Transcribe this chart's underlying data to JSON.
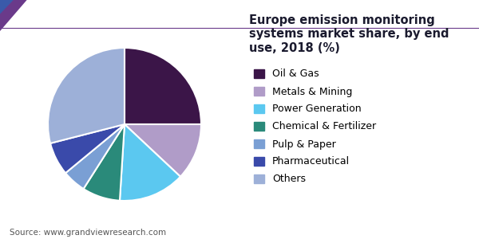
{
  "title": "Europe emission monitoring systems market share, by end use, 2018 (%)",
  "source": "Source: www.grandviewresearch.com",
  "labels": [
    "Oil & Gas",
    "Metals & Mining",
    "Power Generation",
    "Chemical & Fertilizer",
    "Pulp & Paper",
    "Pharmaceutical",
    "Others"
  ],
  "values": [
    25,
    12,
    14,
    8,
    5,
    7,
    29
  ],
  "colors": [
    "#3b1548",
    "#b09cc8",
    "#5bc8f0",
    "#2a8a7a",
    "#7a9fd4",
    "#3a4aaa",
    "#9db0d8"
  ],
  "title_fontsize": 10.5,
  "legend_fontsize": 9,
  "source_fontsize": 7.5,
  "startangle": 90,
  "background_color": "#ffffff",
  "title_color": "#1a1a2e",
  "separator_color": "#6a3a8a",
  "triangle_color1": "#6a3a8a",
  "triangle_color2": "#3a5aaa"
}
